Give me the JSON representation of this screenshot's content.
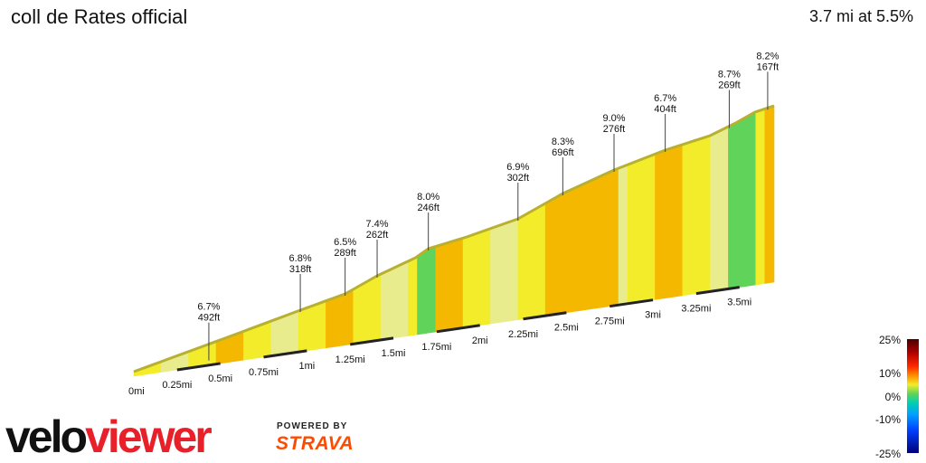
{
  "header": {
    "title": "coll de Rates official",
    "summary": "3.7 mi at 5.5%"
  },
  "chart_data": {
    "type": "area",
    "title": "coll de Rates official",
    "distance_labels": [
      "0mi",
      "0.25mi",
      "0.5mi",
      "0.75mi",
      "1mi",
      "1.25mi",
      "1.5mi",
      "1.75mi",
      "2mi",
      "2.25mi",
      "2.5mi",
      "2.75mi",
      "3mi",
      "3.25mi",
      "3.5mi"
    ],
    "segments": [
      {
        "grade": "6.7%",
        "gain": "492ft"
      },
      {
        "grade": "6.8%",
        "gain": "318ft"
      },
      {
        "grade": "6.5%",
        "gain": "289ft"
      },
      {
        "grade": "7.4%",
        "gain": "262ft"
      },
      {
        "grade": "8.0%",
        "gain": "246ft"
      },
      {
        "grade": "6.9%",
        "gain": "302ft"
      },
      {
        "grade": "8.3%",
        "gain": "696ft"
      },
      {
        "grade": "9.0%",
        "gain": "276ft"
      },
      {
        "grade": "6.7%",
        "gain": "404ft"
      },
      {
        "grade": "8.7%",
        "gain": "269ft"
      },
      {
        "grade": "8.2%",
        "gain": "167ft"
      }
    ],
    "gradient_scale": [
      "25%",
      "10%",
      "0%",
      "-10%",
      "-25%"
    ],
    "colors": {
      "easy": "#5fd35a",
      "moderate": "#f2ec2a",
      "steep": "#f5b800",
      "pale": "#e8ec8c",
      "top_edge": "#b8b030"
    }
  },
  "branding": {
    "logo": "veloviewer",
    "powered_by": "POWERED BY",
    "strava": "STRAVA"
  }
}
